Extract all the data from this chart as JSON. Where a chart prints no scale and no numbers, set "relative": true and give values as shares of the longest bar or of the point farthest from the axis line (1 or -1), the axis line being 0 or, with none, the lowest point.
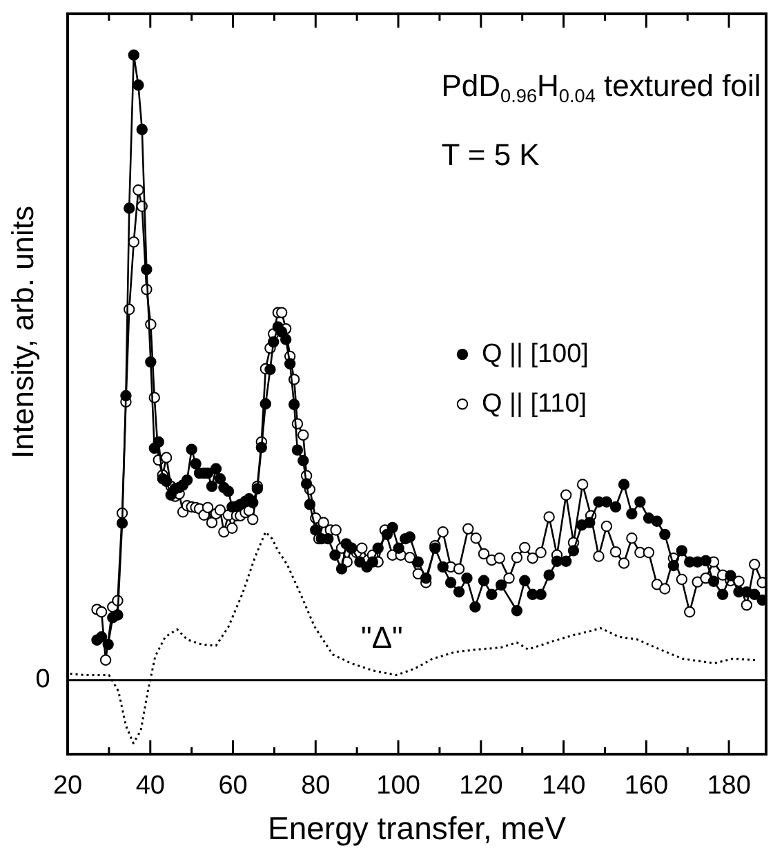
{
  "chart_data": {
    "type": "line",
    "relative": true,
    "xlabel": "Energy transfer, meV",
    "ylabel": "Intensity, arb. units",
    "xlim": [
      20,
      189
    ],
    "xticks": [
      20,
      {
        "value": 30,
        "label": null
      },
      40,
      {
        "value": 50,
        "label": null
      },
      60,
      {
        "value": 70,
        "label": null
      },
      80,
      {
        "value": 90,
        "label": null
      },
      100,
      {
        "value": 110,
        "label": null
      },
      120,
      {
        "value": 130,
        "label": null
      },
      140,
      {
        "value": 150,
        "label": null
      },
      160,
      {
        "value": 170,
        "label": null
      },
      180
    ],
    "grid": false,
    "legend": "right",
    "marker": "circle",
    "ref_lines": [
      {
        "axis": "y",
        "value": 0,
        "label": "0",
        "color": "#000000",
        "line_style": "solid"
      }
    ],
    "annotations": [
      "PdD$_{0.96}$H$_{0.04}$ textured foil",
      "T = 5 K",
      "\"Δ\""
    ],
    "series": [
      {
        "name": "Q || [100]",
        "color": "#000000",
        "x": [
          27.1,
          28.2,
          29.8,
          30.9,
          32.1,
          33.2,
          34.1,
          34.9,
          36.0,
          37.1,
          38.0,
          39.1,
          40.1,
          41.0,
          42.0,
          43.0,
          43.9,
          45.0,
          46.0,
          47.0,
          47.9,
          48.9,
          50.0,
          51.0,
          51.9,
          53.0,
          53.9,
          54.9,
          55.9,
          56.9,
          57.8,
          58.9,
          59.8,
          60.9,
          61.8,
          63.0,
          63.9,
          64.8,
          65.9,
          66.9,
          67.9,
          69.0,
          69.8,
          70.9,
          71.8,
          72.8,
          73.8,
          74.8,
          75.6,
          77.0,
          77.8,
          78.6,
          80.0,
          81.4,
          83.0,
          84.7,
          86.3,
          87.4,
          88.7,
          90.7,
          92.4,
          93.8,
          95.1,
          97.3,
          98.6,
          100.1,
          101.7,
          102.8,
          104.8,
          106.7,
          108.9,
          110.8,
          112.7,
          114.7,
          116.6,
          118.6,
          120.7,
          122.6,
          124.9,
          128.7,
          130.6,
          132.5,
          134.5,
          136.5,
          138.4,
          140.6,
          142.4,
          144.4,
          146.3,
          148.5,
          150.4,
          152.6,
          154.6,
          156.5,
          158.5,
          160.6,
          162.6,
          164.5,
          166.6,
          168.6,
          170.5,
          172.4,
          174.4,
          176.3,
          178.5,
          180.4,
          182.4,
          184.3,
          186.2,
          188.1
        ],
        "values": [
          0.064,
          0.069,
          0.057,
          0.1,
          0.104,
          0.251,
          0.455,
          0.755,
          1.0,
          0.952,
          0.881,
          0.657,
          0.509,
          0.371,
          0.381,
          0.322,
          0.318,
          0.296,
          0.306,
          0.308,
          0.312,
          0.32,
          0.369,
          0.346,
          0.331,
          0.331,
          0.331,
          0.31,
          0.338,
          0.322,
          0.308,
          0.302,
          0.277,
          0.278,
          0.281,
          0.286,
          0.29,
          0.284,
          0.306,
          0.372,
          0.442,
          0.497,
          0.541,
          0.565,
          0.557,
          0.545,
          0.506,
          0.441,
          0.368,
          0.351,
          0.314,
          0.281,
          0.24,
          0.226,
          0.226,
          0.2,
          0.178,
          0.218,
          0.211,
          0.189,
          0.181,
          0.189,
          0.211,
          0.233,
          0.244,
          0.211,
          0.226,
          0.229,
          0.189,
          0.163,
          0.211,
          0.181,
          0.156,
          0.141,
          0.163,
          0.117,
          0.159,
          0.137,
          0.152,
          0.111,
          0.159,
          0.137,
          0.137,
          0.168,
          0.19,
          0.19,
          0.207,
          0.248,
          0.252,
          0.285,
          0.285,
          0.277,
          0.313,
          0.266,
          0.285,
          0.259,
          0.254,
          0.233,
          0.183,
          0.207,
          0.189,
          0.189,
          0.191,
          0.158,
          0.137,
          0.167,
          0.141,
          0.141,
          0.137,
          0.128
        ]
      },
      {
        "name": "Q || [110]",
        "color": "#000000",
        "x": [
          27.1,
          28.2,
          29.2,
          30.9,
          32.1,
          33.2,
          34.1,
          34.9,
          36.0,
          37.1,
          38.0,
          39.1,
          40.1,
          41.0,
          42.0,
          43.0,
          43.9,
          45.0,
          46.0,
          47.0,
          47.9,
          48.9,
          50.0,
          51.0,
          51.9,
          53.0,
          53.9,
          54.9,
          55.9,
          56.9,
          57.8,
          58.9,
          59.8,
          60.9,
          61.8,
          63.0,
          63.9,
          64.8,
          65.9,
          66.9,
          67.9,
          69.0,
          69.8,
          70.9,
          71.8,
          72.8,
          73.8,
          74.8,
          75.6,
          77.0,
          77.8,
          78.6,
          80.0,
          80.8,
          81.9,
          83.6,
          84.9,
          86.3,
          87.6,
          88.7,
          89.9,
          91.2,
          92.7,
          93.8,
          95.1,
          96.8,
          98.6,
          100.6,
          102.8,
          104.8,
          106.7,
          108.9,
          110.8,
          112.7,
          114.7,
          116.9,
          118.8,
          120.7,
          122.6,
          124.5,
          126.8,
          128.7,
          130.6,
          132.5,
          134.5,
          136.5,
          138.4,
          140.6,
          142.4,
          144.6,
          146.6,
          148.5,
          150.4,
          152.6,
          154.6,
          156.5,
          158.5,
          160.6,
          162.6,
          164.5,
          166.6,
          168.6,
          170.5,
          172.4,
          174.4,
          176.3,
          178.5,
          180.4,
          182.4,
          184.3,
          186.2,
          188.1
        ],
        "values": [
          0.113,
          0.109,
          0.032,
          0.117,
          0.127,
          0.267,
          0.445,
          0.593,
          0.701,
          0.784,
          0.758,
          0.625,
          0.569,
          0.452,
          0.352,
          0.328,
          0.356,
          0.31,
          0.294,
          0.298,
          0.269,
          0.279,
          0.277,
          0.276,
          0.274,
          0.264,
          0.276,
          0.252,
          0.266,
          0.272,
          0.237,
          0.264,
          0.243,
          0.263,
          0.263,
          0.268,
          0.271,
          0.257,
          0.31,
          0.381,
          0.498,
          0.531,
          0.554,
          0.588,
          0.588,
          0.562,
          0.518,
          0.481,
          0.41,
          0.392,
          0.327,
          0.305,
          0.259,
          0.226,
          0.252,
          0.24,
          0.24,
          0.211,
          0.189,
          0.211,
          0.204,
          0.211,
          0.192,
          0.2,
          0.189,
          0.24,
          0.2,
          0.2,
          0.196,
          0.17,
          0.156,
          0.215,
          0.237,
          0.181,
          0.178,
          0.242,
          0.227,
          0.202,
          0.192,
          0.195,
          0.163,
          0.196,
          0.212,
          0.195,
          0.204,
          0.261,
          0.2,
          0.296,
          0.22,
          0.313,
          0.263,
          0.198,
          0.246,
          0.205,
          0.187,
          0.227,
          0.204,
          0.204,
          0.153,
          0.146,
          0.195,
          0.161,
          0.109,
          0.157,
          0.163,
          0.189,
          0.168,
          0.159,
          0.158,
          0.12,
          0.185,
          0.156
        ]
      },
      {
        "color": "#000000",
        "marker": "none",
        "line_style": "dotted",
        "x": [
          20.6,
          24.1,
          30.0,
          32.3,
          34.1,
          35.9,
          37.7,
          39.4,
          41.2,
          43.6,
          46.5,
          48.9,
          52.4,
          55.9,
          58.9,
          62.4,
          65.3,
          67.9,
          69.5,
          70.9,
          73.1,
          76.4,
          79.7,
          84.1,
          88.5,
          94.0,
          99.5,
          103.9,
          108.3,
          113.8,
          119.3,
          124.8,
          128.7,
          131.4,
          136.9,
          142.4,
          145.7,
          149.0,
          153.4,
          157.8,
          163.3,
          168.8,
          173.2,
          176.5,
          180.9,
          186.4
        ],
        "values": [
          0.01,
          0.008,
          0.008,
          -0.018,
          -0.073,
          -0.101,
          -0.081,
          -0.018,
          0.038,
          0.069,
          0.081,
          0.065,
          0.057,
          0.055,
          0.085,
          0.14,
          0.196,
          0.237,
          0.226,
          0.207,
          0.185,
          0.137,
          0.086,
          0.041,
          0.027,
          0.015,
          0.008,
          0.018,
          0.034,
          0.045,
          0.049,
          0.052,
          0.06,
          0.049,
          0.061,
          0.072,
          0.077,
          0.083,
          0.069,
          0.065,
          0.049,
          0.034,
          0.03,
          0.027,
          0.034,
          0.032
        ]
      }
    ]
  }
}
